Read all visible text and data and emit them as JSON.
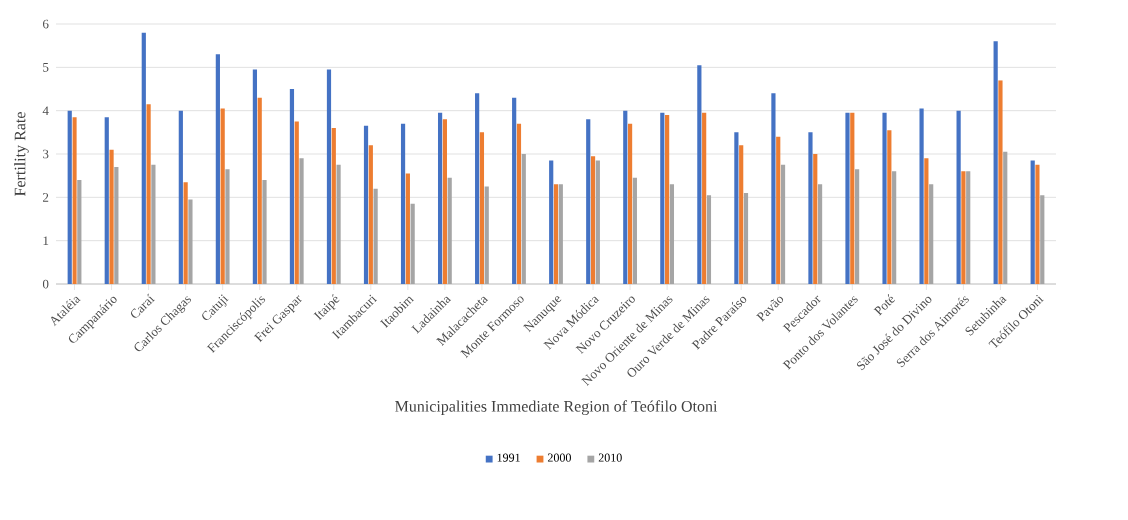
{
  "chart_data": {
    "type": "bar",
    "xlabel": "Municipalities Immediate Region of Teófilo Otoni",
    "ylabel": "Fertility Rate",
    "categories": [
      "Ataléia",
      "Campanário",
      "Caraí",
      "Carlos Chagas",
      "Catuji",
      "Franciscópolis",
      "Frei Gaspar",
      "Itaipé",
      "Itambacuri",
      "Itaobim",
      "Ladainha",
      "Malacacheta",
      "Monte Formoso",
      "Nanuque",
      "Nova Módica",
      "Novo Cruzeiro",
      "Novo Oriente de Minas",
      "Ouro Verde de Minas",
      "Padre Paraíso",
      "Pavão",
      "Pescador",
      "Ponto dos Volantes",
      "Poté",
      "São José do Divino",
      "Serra dos Aimorés",
      "Setubinha",
      "Teófilo Otoni"
    ],
    "series": [
      {
        "name": "1991",
        "color": "#4472c4",
        "values": [
          4.0,
          3.85,
          5.8,
          4.0,
          5.3,
          4.95,
          4.5,
          4.95,
          3.65,
          3.7,
          3.95,
          4.4,
          4.3,
          2.85,
          3.8,
          4.0,
          3.95,
          5.05,
          3.5,
          4.4,
          3.5,
          3.95,
          3.95,
          4.05,
          4.0,
          5.6,
          2.85
        ]
      },
      {
        "name": "2000",
        "color": "#ed7d31",
        "values": [
          3.85,
          3.1,
          4.15,
          2.35,
          4.05,
          4.3,
          3.75,
          3.6,
          3.2,
          2.55,
          3.8,
          3.5,
          3.7,
          2.3,
          2.95,
          3.7,
          3.9,
          3.95,
          3.2,
          3.4,
          3.0,
          3.95,
          3.55,
          2.9,
          2.6,
          4.7,
          2.75
        ]
      },
      {
        "name": "2010",
        "color": "#a5a5a5",
        "values": [
          2.4,
          2.7,
          2.75,
          1.95,
          2.65,
          2.4,
          2.9,
          2.75,
          2.2,
          1.85,
          2.45,
          2.25,
          3.0,
          2.3,
          2.85,
          2.45,
          2.3,
          2.05,
          2.1,
          2.75,
          2.3,
          2.65,
          2.6,
          2.3,
          2.6,
          3.05,
          2.05
        ]
      }
    ],
    "ylim": [
      0,
      6
    ],
    "yticks": [
      0,
      1,
      2,
      3,
      4,
      5,
      6
    ],
    "grid": "y",
    "legend": "bottom"
  }
}
